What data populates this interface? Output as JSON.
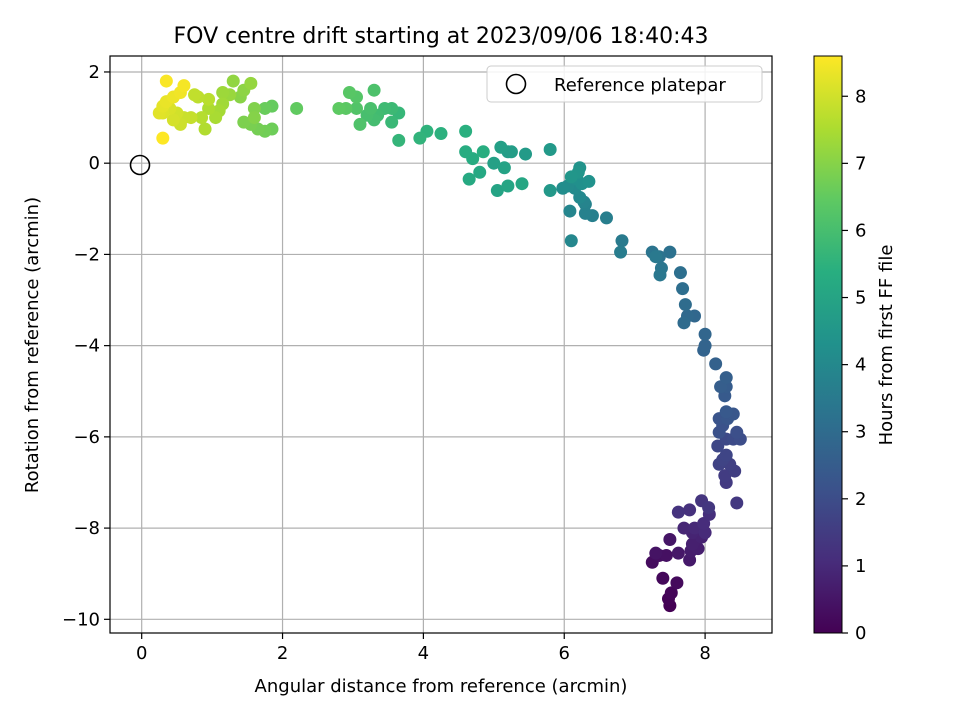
{
  "chart_data": {
    "type": "scatter",
    "title": "FOV centre drift starting at 2023/09/06 18:40:43",
    "xlabel": "Angular distance from reference (arcmin)",
    "ylabel": "Rotation from reference (arcmin)",
    "xlim": [
      -0.45,
      8.95
    ],
    "ylim": [
      -10.3,
      2.35
    ],
    "xticks": [
      "0",
      "2",
      "4",
      "6",
      "8"
    ],
    "yticks": [
      "−10",
      "−8",
      "−6",
      "−4",
      "−2",
      "0",
      "2"
    ],
    "grid": true,
    "legend": {
      "placement": "top-right",
      "entries": [
        "Reference platepar"
      ]
    },
    "reference_point": {
      "x": 0,
      "y": 0,
      "label": "Reference platepar"
    },
    "colorbar": {
      "label": "Hours from first FF file",
      "range": [
        0,
        8.6
      ],
      "ticks": [
        "0",
        "1",
        "2",
        "3",
        "4",
        "5",
        "6",
        "7",
        "8"
      ],
      "colormap": "viridis"
    },
    "series": [
      {
        "points": [
          [
            7.5,
            -9.7
          ],
          [
            7.48,
            -9.55
          ],
          [
            7.52,
            -9.42
          ],
          [
            7.4,
            -9.1
          ],
          [
            7.6,
            -9.2
          ],
          [
            7.25,
            -8.75
          ],
          [
            7.35,
            -8.6
          ],
          [
            7.45,
            -8.6
          ],
          [
            7.3,
            -8.55
          ],
          [
            7.5,
            -8.25
          ],
          [
            7.62,
            -8.55
          ],
          [
            7.78,
            -8.7
          ],
          [
            7.8,
            -8.5
          ],
          [
            7.9,
            -8.45
          ],
          [
            7.82,
            -8.35
          ],
          [
            7.95,
            -8.2
          ],
          [
            7.82,
            -8.1
          ],
          [
            7.7,
            -8.0
          ],
          [
            7.85,
            -8.0
          ],
          [
            8.0,
            -8.1
          ],
          [
            7.98,
            -7.9
          ],
          [
            8.06,
            -7.7
          ],
          [
            7.78,
            -7.6
          ],
          [
            7.62,
            -7.65
          ],
          [
            7.95,
            -7.4
          ],
          [
            8.05,
            -7.55
          ],
          [
            8.45,
            -7.45
          ],
          [
            8.3,
            -7.0
          ],
          [
            8.28,
            -6.85
          ],
          [
            8.42,
            -6.75
          ],
          [
            8.35,
            -6.6
          ],
          [
            8.2,
            -6.6
          ],
          [
            8.25,
            -6.5
          ],
          [
            8.3,
            -6.4
          ],
          [
            8.18,
            -6.2
          ],
          [
            8.3,
            -6.05
          ],
          [
            8.4,
            -6.05
          ],
          [
            8.5,
            -6.05
          ],
          [
            8.45,
            -5.9
          ],
          [
            8.2,
            -5.9
          ],
          [
            8.25,
            -5.75
          ],
          [
            8.2,
            -5.6
          ],
          [
            8.32,
            -5.6
          ],
          [
            8.4,
            -5.5
          ],
          [
            8.3,
            -5.45
          ],
          [
            8.28,
            -5.1
          ],
          [
            8.3,
            -4.9
          ],
          [
            8.22,
            -4.9
          ],
          [
            8.3,
            -4.7
          ],
          [
            8.15,
            -4.4
          ],
          [
            7.98,
            -4.1
          ],
          [
            8.0,
            -4.0
          ],
          [
            8.0,
            -3.75
          ],
          [
            7.85,
            -3.35
          ],
          [
            7.75,
            -3.35
          ],
          [
            7.7,
            -3.5
          ],
          [
            7.72,
            -3.1
          ],
          [
            7.68,
            -2.75
          ],
          [
            7.65,
            -2.4
          ],
          [
            7.5,
            -1.95
          ],
          [
            7.35,
            -2.05
          ],
          [
            7.25,
            -1.95
          ],
          [
            7.38,
            -2.3
          ],
          [
            7.36,
            -2.45
          ],
          [
            7.3,
            -2.05
          ],
          [
            6.82,
            -1.7
          ],
          [
            6.8,
            -1.95
          ],
          [
            6.6,
            -1.2
          ],
          [
            6.4,
            -1.15
          ],
          [
            6.3,
            -1.1
          ],
          [
            6.3,
            -0.9
          ],
          [
            6.28,
            -0.85
          ],
          [
            6.08,
            -1.05
          ],
          [
            6.1,
            -1.7
          ],
          [
            6.22,
            -0.75
          ],
          [
            6.15,
            -0.55
          ],
          [
            6.05,
            -0.5
          ],
          [
            5.98,
            -0.55
          ],
          [
            6.18,
            -0.35
          ],
          [
            6.25,
            -0.45
          ],
          [
            6.35,
            -0.4
          ],
          [
            6.22,
            -0.1
          ],
          [
            6.2,
            -0.2
          ],
          [
            6.1,
            -0.3
          ],
          [
            5.8,
            -0.6
          ],
          [
            5.8,
            0.3
          ],
          [
            5.45,
            0.2
          ],
          [
            5.2,
            0.25
          ],
          [
            5.25,
            0.25
          ],
          [
            5.1,
            0.35
          ],
          [
            5.0,
            0.0
          ],
          [
            5.15,
            -0.1
          ],
          [
            5.05,
            -0.6
          ],
          [
            5.2,
            -0.5
          ],
          [
            5.4,
            -0.45
          ],
          [
            4.8,
            -0.2
          ],
          [
            4.65,
            -0.35
          ],
          [
            4.7,
            0.1
          ],
          [
            4.6,
            0.25
          ],
          [
            4.85,
            0.25
          ],
          [
            4.6,
            0.7
          ],
          [
            4.25,
            0.65
          ],
          [
            4.05,
            0.7
          ],
          [
            3.95,
            0.55
          ],
          [
            3.65,
            0.5
          ],
          [
            3.65,
            1.1
          ],
          [
            3.55,
            0.9
          ],
          [
            3.55,
            1.2
          ],
          [
            3.45,
            1.2
          ],
          [
            3.35,
            1.05
          ],
          [
            3.3,
            0.95
          ],
          [
            3.2,
            1.05
          ],
          [
            3.25,
            1.2
          ],
          [
            3.3,
            1.6
          ],
          [
            3.1,
            0.85
          ],
          [
            3.05,
            1.2
          ],
          [
            3.05,
            1.45
          ],
          [
            2.95,
            1.55
          ],
          [
            2.9,
            1.2
          ],
          [
            2.8,
            1.2
          ],
          [
            2.2,
            1.2
          ],
          [
            1.85,
            1.25
          ],
          [
            1.75,
            1.2
          ],
          [
            1.85,
            0.75
          ],
          [
            1.75,
            0.7
          ],
          [
            1.65,
            0.75
          ],
          [
            1.55,
            0.85
          ],
          [
            1.45,
            0.9
          ],
          [
            1.6,
            1.2
          ],
          [
            1.6,
            1.0
          ],
          [
            1.4,
            1.45
          ],
          [
            1.45,
            1.6
          ],
          [
            1.3,
            1.8
          ],
          [
            1.55,
            1.75
          ],
          [
            1.25,
            1.5
          ],
          [
            1.15,
            1.55
          ],
          [
            1.15,
            1.3
          ],
          [
            1.1,
            1.15
          ],
          [
            1.05,
            1.0
          ],
          [
            0.95,
            1.2
          ],
          [
            0.9,
            0.75
          ],
          [
            0.85,
            1.0
          ],
          [
            0.95,
            1.4
          ],
          [
            0.8,
            1.45
          ],
          [
            0.75,
            1.5
          ],
          [
            0.7,
            1.0
          ],
          [
            0.6,
            1.0
          ],
          [
            0.55,
            0.85
          ],
          [
            0.5,
            1.1
          ],
          [
            0.45,
            0.95
          ],
          [
            0.4,
            1.2
          ],
          [
            0.3,
            1.1
          ],
          [
            0.25,
            1.1
          ],
          [
            0.3,
            1.25
          ],
          [
            0.35,
            1.35
          ],
          [
            0.45,
            1.45
          ],
          [
            0.55,
            1.55
          ],
          [
            0.6,
            1.7
          ],
          [
            0.35,
            1.8
          ],
          [
            0.3,
            0.55
          ]
        ]
      }
    ]
  }
}
